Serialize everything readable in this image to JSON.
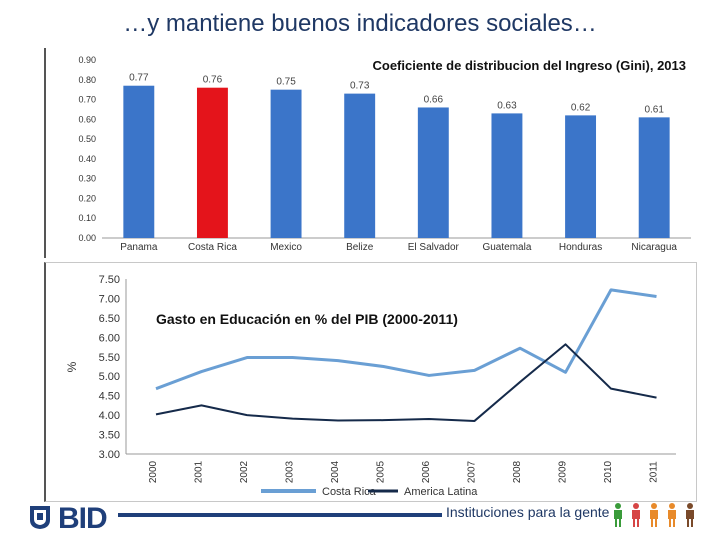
{
  "slide": {
    "title": "…y mantiene buenos indicadores sociales…",
    "footer_logo": "BID",
    "footer_tagline": "Instituciones para la gente"
  },
  "colors": {
    "title": "#1f3864",
    "bar_default": "#3b75c9",
    "bar_highlight": "#e4141b",
    "costa_rica_line": "#6a9fd4",
    "america_latina_line": "#152a4a",
    "brand": "#1f3f7a"
  },
  "icons": [
    "bid-emblem-icon",
    "people-icon"
  ],
  "chart_data": [
    {
      "type": "bar",
      "title": "Coeficiente de distribucion del Ingreso (Gini), 2013",
      "categories": [
        "Panama",
        "Costa Rica",
        "Mexico",
        "Belize",
        "El Salvador",
        "Guatemala",
        "Honduras",
        "Nicaragua"
      ],
      "values": [
        0.77,
        0.76,
        0.75,
        0.73,
        0.66,
        0.63,
        0.62,
        0.61
      ],
      "value_labels": [
        "0.77",
        "0.76",
        "0.75",
        "0.73",
        "0.66",
        "0.63",
        "0.62",
        "0.61"
      ],
      "highlight": "Costa Rica",
      "ylim": [
        0,
        0.9
      ],
      "yticks": [
        "0.00",
        "0.10",
        "0.20",
        "0.30",
        "0.40",
        "0.50",
        "0.60",
        "0.70",
        "0.80",
        "0.90"
      ],
      "grid": false
    },
    {
      "type": "line",
      "title": "Gasto en Educación en % del PIB (2000-2011)",
      "ylabel": "%",
      "x": [
        "2000",
        "2001",
        "2002",
        "2003",
        "2004",
        "2005",
        "2006",
        "2007",
        "2008",
        "2009",
        "2010",
        "2011"
      ],
      "series": [
        {
          "name": "Costa Rica",
          "values": [
            4.68,
            5.12,
            5.48,
            5.48,
            5.4,
            5.25,
            5.02,
            5.15,
            5.72,
            5.1,
            7.22,
            7.05
          ]
        },
        {
          "name": "America Latina",
          "values": [
            4.02,
            4.25,
            4.0,
            3.91,
            3.86,
            3.87,
            3.9,
            3.85,
            4.85,
            5.82,
            4.68,
            4.45
          ]
        }
      ],
      "ylim": [
        3.0,
        7.5
      ],
      "yticks": [
        "3.00",
        "3.50",
        "4.00",
        "4.50",
        "5.00",
        "5.50",
        "6.00",
        "6.50",
        "7.00",
        "7.50"
      ],
      "legend": "bottom",
      "grid": false
    }
  ]
}
